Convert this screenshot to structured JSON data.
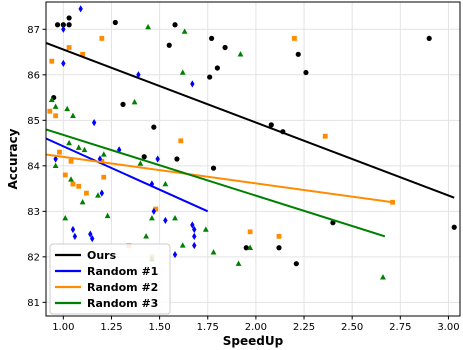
{
  "chart_data": {
    "type": "scatter",
    "title": "",
    "xlabel": "SpeedUp",
    "ylabel": "Accuracy",
    "xlim": [
      0.91,
      3.06
    ],
    "ylim": [
      80.7,
      87.6
    ],
    "xticks": [
      "1.00",
      "1.25",
      "1.50",
      "1.75",
      "2.00",
      "2.25",
      "2.50",
      "2.75",
      "3.00"
    ],
    "yticks": [
      "81",
      "82",
      "83",
      "84",
      "85",
      "86",
      "87"
    ],
    "grid": true,
    "legend_position": "bottom-left",
    "series": [
      {
        "name": "Ours",
        "color": "#000000",
        "marker": "circle",
        "points": [
          [
            0.97,
            87.1
          ],
          [
            1.0,
            87.1
          ],
          [
            1.03,
            87.1
          ],
          [
            1.03,
            87.25
          ],
          [
            1.27,
            87.15
          ],
          [
            1.55,
            86.65
          ],
          [
            1.58,
            87.1
          ],
          [
            1.77,
            86.8
          ],
          [
            1.84,
            86.6
          ],
          [
            1.8,
            86.15
          ],
          [
            1.76,
            85.95
          ],
          [
            2.22,
            86.45
          ],
          [
            2.26,
            86.05
          ],
          [
            2.9,
            86.8
          ],
          [
            0.95,
            85.5
          ],
          [
            1.31,
            85.35
          ],
          [
            1.47,
            84.85
          ],
          [
            2.08,
            84.9
          ],
          [
            2.14,
            84.75
          ],
          [
            1.42,
            84.2
          ],
          [
            1.59,
            84.15
          ],
          [
            1.78,
            83.95
          ],
          [
            2.4,
            82.75
          ],
          [
            1.95,
            82.2
          ],
          [
            2.12,
            82.2
          ],
          [
            2.21,
            81.85
          ],
          [
            3.03,
            82.65
          ]
        ]
      },
      {
        "name": "Random #2",
        "color": "#ff8c00",
        "marker": "square",
        "points": [
          [
            0.94,
            86.3
          ],
          [
            1.03,
            86.6
          ],
          [
            1.1,
            86.45
          ],
          [
            1.2,
            86.8
          ],
          [
            2.2,
            86.8
          ],
          [
            0.93,
            85.2
          ],
          [
            0.96,
            85.1
          ],
          [
            0.98,
            84.3
          ],
          [
            1.01,
            83.8
          ],
          [
            1.04,
            84.1
          ],
          [
            1.05,
            83.6
          ],
          [
            1.08,
            83.55
          ],
          [
            1.12,
            83.4
          ],
          [
            1.21,
            83.75
          ],
          [
            1.2,
            84.1
          ],
          [
            1.34,
            82.25
          ],
          [
            1.48,
            83.05
          ],
          [
            1.61,
            84.55
          ],
          [
            1.97,
            82.55
          ],
          [
            2.12,
            82.45
          ],
          [
            2.36,
            84.65
          ],
          [
            2.71,
            83.2
          ],
          [
            1.46,
            82.0
          ]
        ]
      },
      {
        "name": "Random #1",
        "color": "#0000ff",
        "marker": "diamond",
        "points": [
          [
            1.09,
            87.45
          ],
          [
            1.0,
            87.0
          ],
          [
            1.0,
            86.25
          ],
          [
            1.39,
            86.0
          ],
          [
            1.67,
            85.8
          ],
          [
            1.16,
            84.95
          ],
          [
            1.19,
            84.15
          ],
          [
            1.29,
            84.35
          ],
          [
            1.46,
            83.6
          ],
          [
            1.49,
            84.15
          ],
          [
            1.53,
            82.8
          ],
          [
            1.05,
            82.6
          ],
          [
            1.06,
            82.45
          ],
          [
            1.14,
            82.5
          ],
          [
            1.15,
            82.4
          ],
          [
            1.67,
            82.7
          ],
          [
            1.68,
            82.6
          ],
          [
            1.68,
            82.45
          ],
          [
            1.68,
            82.25
          ],
          [
            1.58,
            82.05
          ],
          [
            1.47,
            83.0
          ],
          [
            1.2,
            83.4
          ],
          [
            0.96,
            84.15
          ]
        ]
      },
      {
        "name": "Random #3",
        "color": "#008000",
        "marker": "triangle",
        "points": [
          [
            1.44,
            87.05
          ],
          [
            1.63,
            86.95
          ],
          [
            1.62,
            86.05
          ],
          [
            1.92,
            86.45
          ],
          [
            0.94,
            85.45
          ],
          [
            0.96,
            85.3
          ],
          [
            1.02,
            85.25
          ],
          [
            1.05,
            85.1
          ],
          [
            1.37,
            85.4
          ],
          [
            0.96,
            84.0
          ],
          [
            1.03,
            84.5
          ],
          [
            1.08,
            84.4
          ],
          [
            1.11,
            84.35
          ],
          [
            1.21,
            84.25
          ],
          [
            1.23,
            82.9
          ],
          [
            1.01,
            82.85
          ],
          [
            1.04,
            83.7
          ],
          [
            1.1,
            83.2
          ],
          [
            1.18,
            83.35
          ],
          [
            1.4,
            84.05
          ],
          [
            1.46,
            82.85
          ],
          [
            1.53,
            83.6
          ],
          [
            1.58,
            82.85
          ],
          [
            1.43,
            82.45
          ],
          [
            1.62,
            82.25
          ],
          [
            1.78,
            82.1
          ],
          [
            1.74,
            82.6
          ],
          [
            1.91,
            81.85
          ],
          [
            1.97,
            82.2
          ],
          [
            2.66,
            81.55
          ],
          [
            1.46,
            81.95
          ]
        ]
      }
    ],
    "lines": [
      {
        "name": "Ours",
        "color": "#000000",
        "x": [
          0.91,
          3.03
        ],
        "y": [
          86.7,
          83.3
        ]
      },
      {
        "name": "Random #1",
        "color": "#0000ff",
        "x": [
          0.91,
          1.75
        ],
        "y": [
          84.6,
          83.0
        ]
      },
      {
        "name": "Random #2",
        "color": "#ff8c00",
        "x": [
          0.91,
          2.71
        ],
        "y": [
          84.25,
          83.2
        ]
      },
      {
        "name": "Random #3",
        "color": "#008000",
        "x": [
          0.91,
          2.67
        ],
        "y": [
          84.8,
          82.45
        ]
      }
    ],
    "legend": [
      "Ours",
      "Random #1",
      "Random #2",
      "Random #3"
    ]
  }
}
